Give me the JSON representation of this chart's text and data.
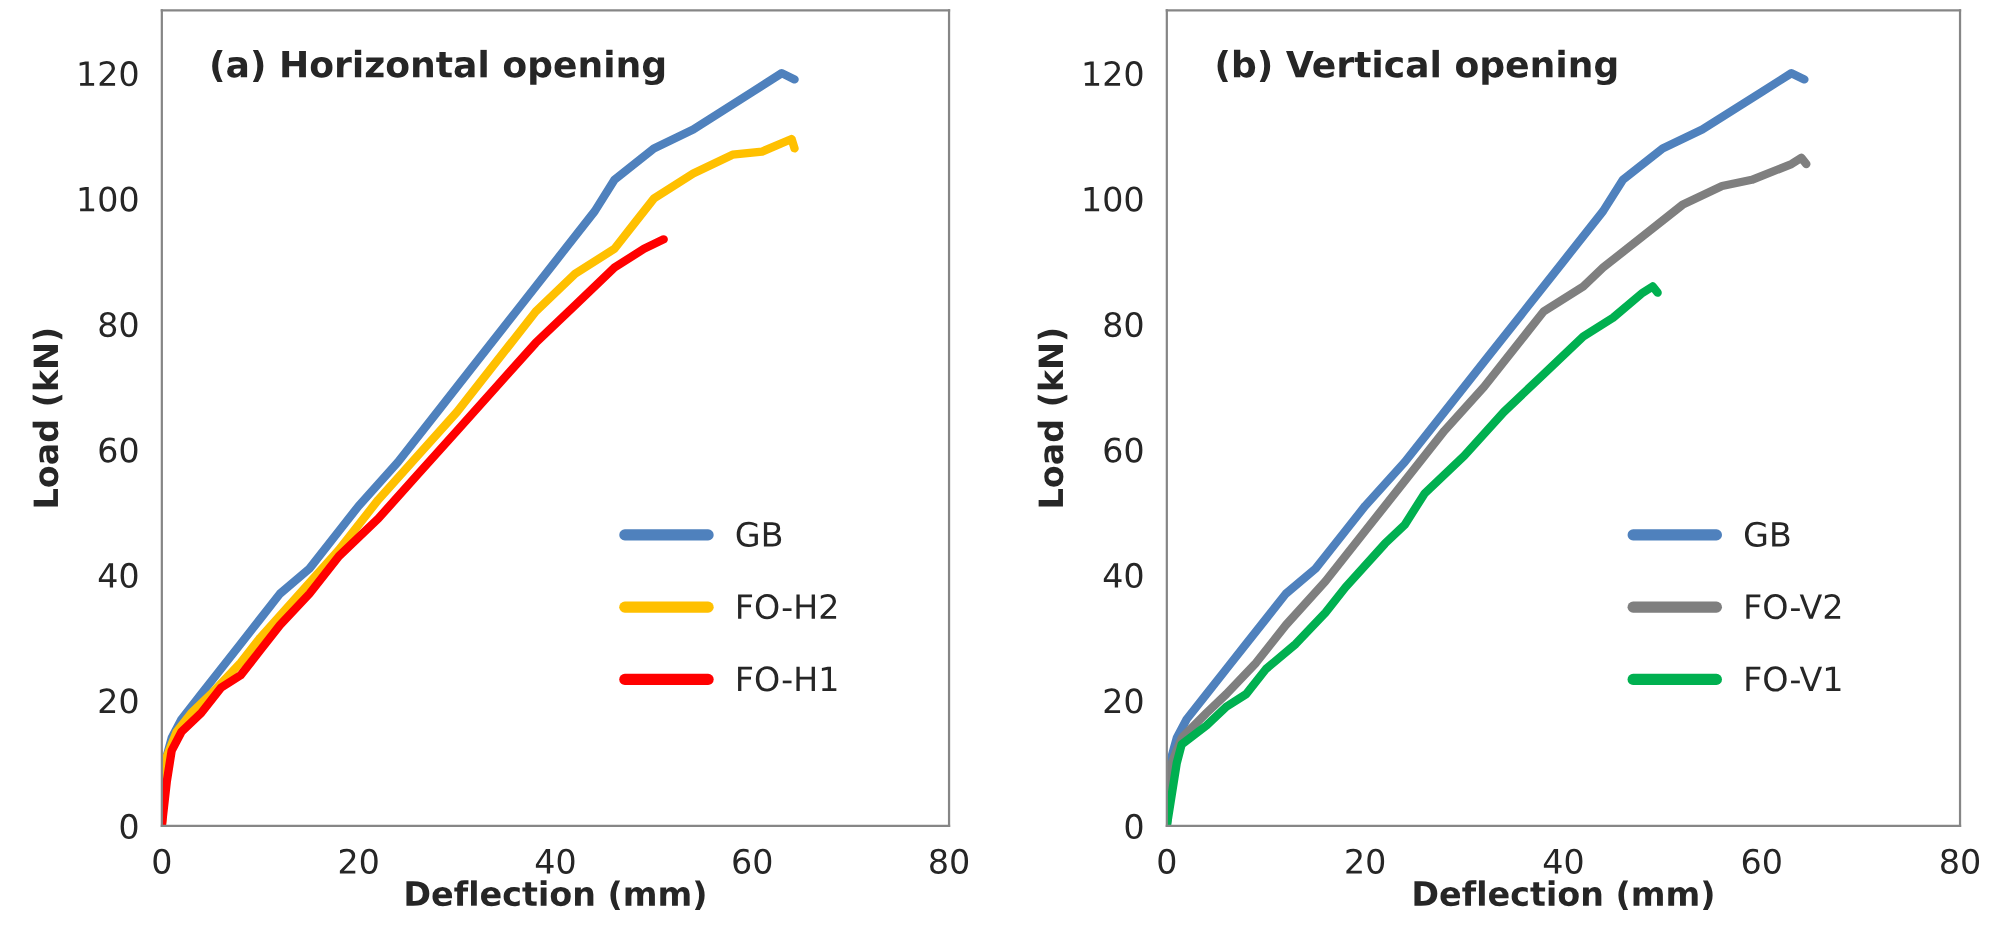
{
  "chart_data": [
    {
      "type": "line",
      "title": "(a) Horizontal opening",
      "xlabel": "Deflection (mm)",
      "ylabel": "Load (kN)",
      "xlim": [
        0,
        80
      ],
      "xticks": [
        0,
        20,
        40,
        60,
        80
      ],
      "ylim": [
        0,
        130
      ],
      "yticks": [
        0,
        20,
        40,
        60,
        80,
        100,
        120
      ],
      "grid": false,
      "legend": "bottom right",
      "marker": "none",
      "line_style": "solid",
      "series": [
        {
          "name": "GB",
          "color": "#4f81bd",
          "x": [
            0,
            0.3,
            1,
            2,
            4,
            6,
            8,
            10,
            12,
            15,
            18,
            20,
            24,
            28,
            32,
            36,
            40,
            44,
            46,
            50,
            54,
            57,
            60,
            63,
            64.3
          ],
          "values": [
            0,
            10,
            14,
            17,
            21,
            25,
            29,
            33,
            37,
            41,
            47,
            51,
            58,
            66,
            74,
            82,
            90,
            98,
            103,
            108,
            111,
            114,
            117,
            120,
            119
          ]
        },
        {
          "name": "FO-H2",
          "color": "#ffc000",
          "x": [
            0,
            0.5,
            1.5,
            3,
            5,
            8,
            10,
            14,
            18,
            22,
            26,
            30,
            34,
            38,
            42,
            46,
            48,
            50,
            54,
            58,
            61,
            64,
            64.3
          ],
          "values": [
            0,
            11,
            15,
            18,
            21,
            26,
            30,
            37,
            44,
            52,
            59,
            66,
            74,
            82,
            88,
            92,
            96,
            100,
            104,
            107,
            107.5,
            109.5,
            108
          ]
        },
        {
          "name": "FO-H1",
          "color": "#ff0000",
          "x": [
            0,
            0.5,
            1,
            2,
            4,
            6,
            8,
            10,
            12,
            15,
            18,
            22,
            26,
            30,
            34,
            38,
            42,
            46,
            49,
            51
          ],
          "values": [
            0,
            7,
            12,
            15,
            18,
            22,
            24,
            28,
            32,
            37,
            43,
            49,
            56,
            63,
            70,
            77,
            83,
            89,
            92,
            93.5
          ]
        }
      ]
    },
    {
      "type": "line",
      "title": "(b) Vertical opening",
      "xlabel": "Deflection (mm)",
      "ylabel": "Load (kN)",
      "xlim": [
        0,
        80
      ],
      "xticks": [
        0,
        20,
        40,
        60,
        80
      ],
      "ylim": [
        0,
        130
      ],
      "yticks": [
        0,
        20,
        40,
        60,
        80,
        100,
        120
      ],
      "grid": false,
      "legend": "bottom right",
      "marker": "none",
      "line_style": "solid",
      "series": [
        {
          "name": "GB",
          "color": "#4f81bd",
          "x": [
            0,
            0.3,
            1,
            2,
            4,
            6,
            8,
            10,
            12,
            15,
            18,
            20,
            24,
            28,
            32,
            36,
            40,
            44,
            46,
            50,
            54,
            57,
            60,
            63,
            64.3
          ],
          "values": [
            0,
            10,
            14,
            17,
            21,
            25,
            29,
            33,
            37,
            41,
            47,
            51,
            58,
            66,
            74,
            82,
            90,
            98,
            103,
            108,
            111,
            114,
            117,
            120,
            119
          ]
        },
        {
          "name": "FO-V2",
          "color": "#7f7f7f",
          "x": [
            0,
            0.5,
            1.5,
            4,
            6,
            9,
            12,
            16,
            20,
            24,
            28,
            32,
            36,
            38,
            42,
            44,
            48,
            52,
            56,
            59,
            63,
            64,
            64.5
          ],
          "values": [
            0,
            10,
            14,
            18,
            21,
            26,
            32,
            39,
            47,
            55,
            63,
            70,
            78,
            82,
            86,
            89,
            94,
            99,
            102,
            103,
            105.5,
            106.5,
            105.5
          ]
        },
        {
          "name": "FO-V1",
          "color": "#00b050",
          "x": [
            0,
            1,
            1.5,
            4,
            6,
            8,
            10,
            13,
            16,
            18,
            22,
            24,
            26,
            30,
            34,
            38,
            42,
            45,
            48,
            49,
            49.5
          ],
          "values": [
            0,
            10,
            13,
            16,
            19,
            21,
            25,
            29,
            34,
            38,
            45,
            48,
            53,
            59,
            66,
            72,
            78,
            81,
            85,
            86,
            85
          ]
        }
      ]
    }
  ]
}
